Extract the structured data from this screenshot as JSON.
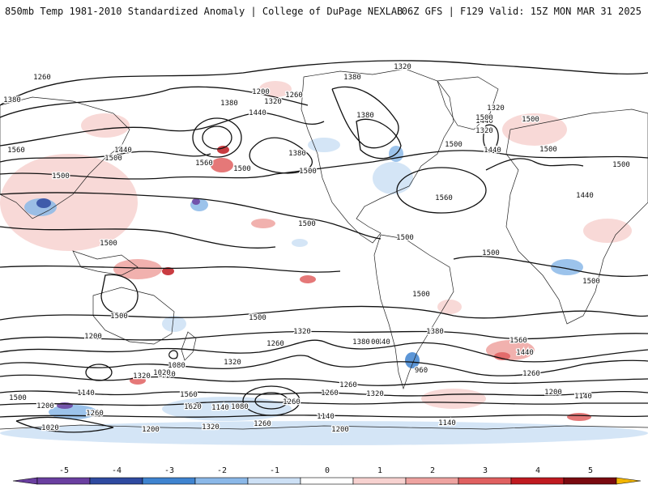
{
  "header": {
    "title": "850mb Temp 1981-2010 Standardized Anomaly | College of DuPage NEXLAB",
    "run_info": "06Z GFS | F129 Valid: 15Z MON MAR 31 2025"
  },
  "map": {
    "contour_labels": [
      "1320",
      "1260",
      "1380",
      "1380",
      "1200",
      "1320",
      "1260",
      "1380",
      "1440",
      "1320",
      "1500",
      "1560",
      "1440",
      "1500",
      "1380",
      "1500",
      "1500",
      "1560",
      "1440",
      "1500",
      "1380",
      "1500",
      "1320",
      "1560",
      "1440",
      "1500",
      "1500",
      "1500",
      "1440",
      "1500",
      "1500",
      "1500",
      "1500",
      "1500",
      "1500",
      "1500",
      "1500",
      "1320",
      "1380",
      "1440",
      "1500",
      "1560",
      "1320",
      "1440",
      "1200",
      "1260",
      "1320",
      "1380",
      "1440",
      "1500",
      "1560",
      "1620",
      "1140",
      "1080",
      "1020",
      "960",
      "1200",
      "1260",
      "1320",
      "1260",
      "1260",
      "1140",
      "1080",
      "1020",
      "1200",
      "1140",
      "1260",
      "1320",
      "1200",
      "1140",
      "1260",
      "1140",
      "1200",
      "1260",
      "1080",
      "1140",
      "1200"
    ],
    "colors": {
      "neg5": "#6a3fa0",
      "neg4": "#2f4aa0",
      "neg3": "#3f84d0",
      "neg2": "#8bb8e8",
      "neg1": "#cde0f5",
      "zero": "#ffffff",
      "pos1": "#f7d2d0",
      "pos2": "#eea3a0",
      "pos3": "#e06060",
      "pos4": "#c01a20",
      "pos5": "#7a0a10",
      "pos_extreme": "#f2b500"
    }
  },
  "colorbar": {
    "ticks": [
      "-5",
      "-4",
      "-3",
      "-2",
      "-1",
      "0",
      "1",
      "2",
      "3",
      "4",
      "5"
    ]
  }
}
